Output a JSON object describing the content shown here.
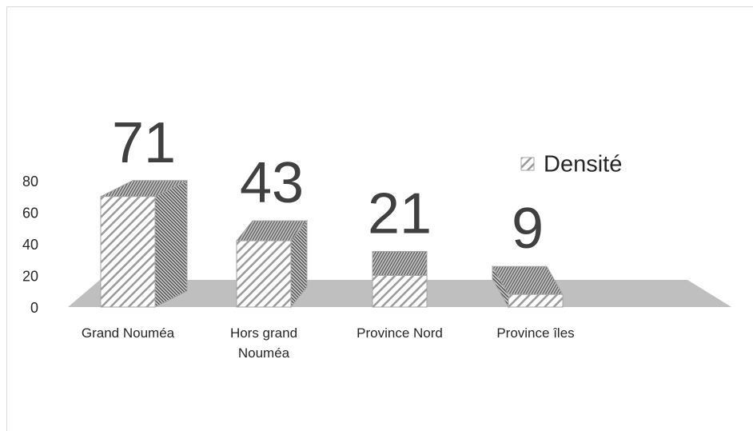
{
  "chart_data": {
    "type": "bar3d",
    "categories": [
      "Grand Nouméa",
      "Hors grand Nouméa",
      "Province Nord",
      "Province îles"
    ],
    "series": [
      {
        "name": "Densité",
        "color": "#a6a6a6",
        "values": [
          71,
          43,
          21,
          9
        ]
      }
    ],
    "ylim": [
      0,
      80
    ],
    "yticks": [
      0,
      20,
      40,
      60,
      80
    ],
    "legend": "right"
  }
}
